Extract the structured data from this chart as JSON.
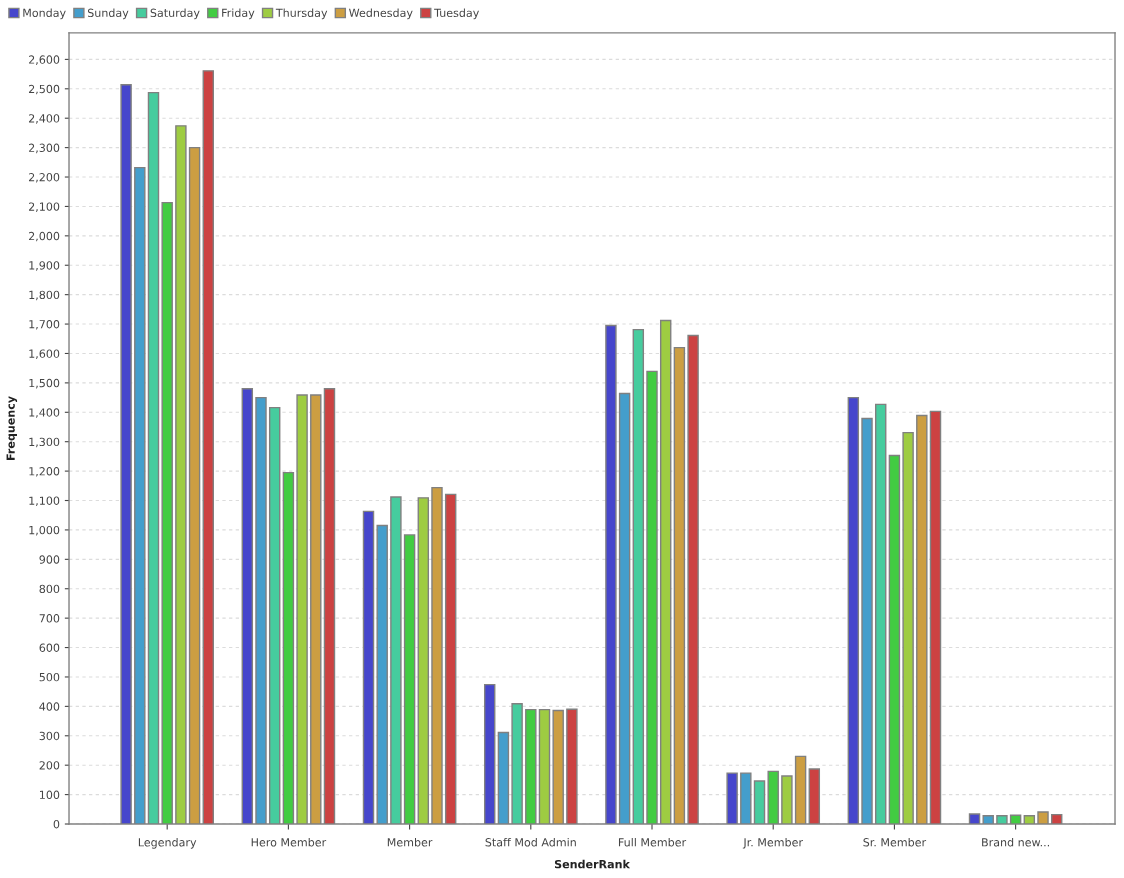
{
  "chart_data": {
    "type": "bar",
    "xlabel": "SenderRank",
    "ylabel": "Frequency",
    "categories": [
      "Legendary",
      "Hero Member",
      "Member",
      "Staff Mod Admin",
      "Full Member",
      "Jr. Member",
      "Sr. Member",
      "Brand new..."
    ],
    "series": [
      {
        "name": "Monday",
        "color": "#4646cc",
        "values": [
          2514,
          1480,
          1063,
          474,
          1695,
          173,
          1450,
          34
        ]
      },
      {
        "name": "Sunday",
        "color": "#449ecc",
        "values": [
          2232,
          1450,
          1015,
          311,
          1464,
          173,
          1379,
          28
        ]
      },
      {
        "name": "Saturday",
        "color": "#46cc9e",
        "values": [
          2487,
          1416,
          1112,
          409,
          1681,
          146,
          1427,
          28
        ]
      },
      {
        "name": "Friday",
        "color": "#42cc42",
        "values": [
          2113,
          1195,
          983,
          389,
          1539,
          179,
          1253,
          30
        ]
      },
      {
        "name": "Thursday",
        "color": "#9ecc42",
        "values": [
          2374,
          1459,
          1109,
          389,
          1712,
          163,
          1331,
          28
        ]
      },
      {
        "name": "Wednesday",
        "color": "#cc9e42",
        "values": [
          2300,
          1459,
          1144,
          386,
          1620,
          230,
          1389,
          41
        ]
      },
      {
        "name": "Tuesday",
        "color": "#cc4242",
        "values": [
          2561,
          1480,
          1121,
          390,
          1661,
          187,
          1403,
          32
        ]
      }
    ],
    "ylim": [
      0,
      2690
    ],
    "yticks": [
      0,
      100,
      200,
      300,
      400,
      500,
      600,
      700,
      800,
      900,
      {
        "value": 1000,
        "label": "1,000"
      },
      {
        "value": 1100,
        "label": "1,100"
      },
      {
        "value": 1200,
        "label": "1,200"
      },
      {
        "value": 1300,
        "label": "1,300"
      },
      {
        "value": 1400,
        "label": "1,400"
      },
      {
        "value": 1500,
        "label": "1,500"
      },
      {
        "value": 1600,
        "label": "1,600"
      },
      {
        "value": 1700,
        "label": "1,700"
      },
      {
        "value": 1800,
        "label": "1,800"
      },
      {
        "value": 1900,
        "label": "1,900"
      },
      {
        "value": 2000,
        "label": "2,000"
      },
      {
        "value": 2100,
        "label": "2,100"
      },
      {
        "value": 2200,
        "label": "2,200"
      },
      {
        "value": 2300,
        "label": "2,300"
      },
      {
        "value": 2400,
        "label": "2,400"
      },
      {
        "value": 2500,
        "label": "2,500"
      },
      {
        "value": 2600,
        "label": "2,600"
      }
    ],
    "grid": "y",
    "legend": "top left"
  }
}
